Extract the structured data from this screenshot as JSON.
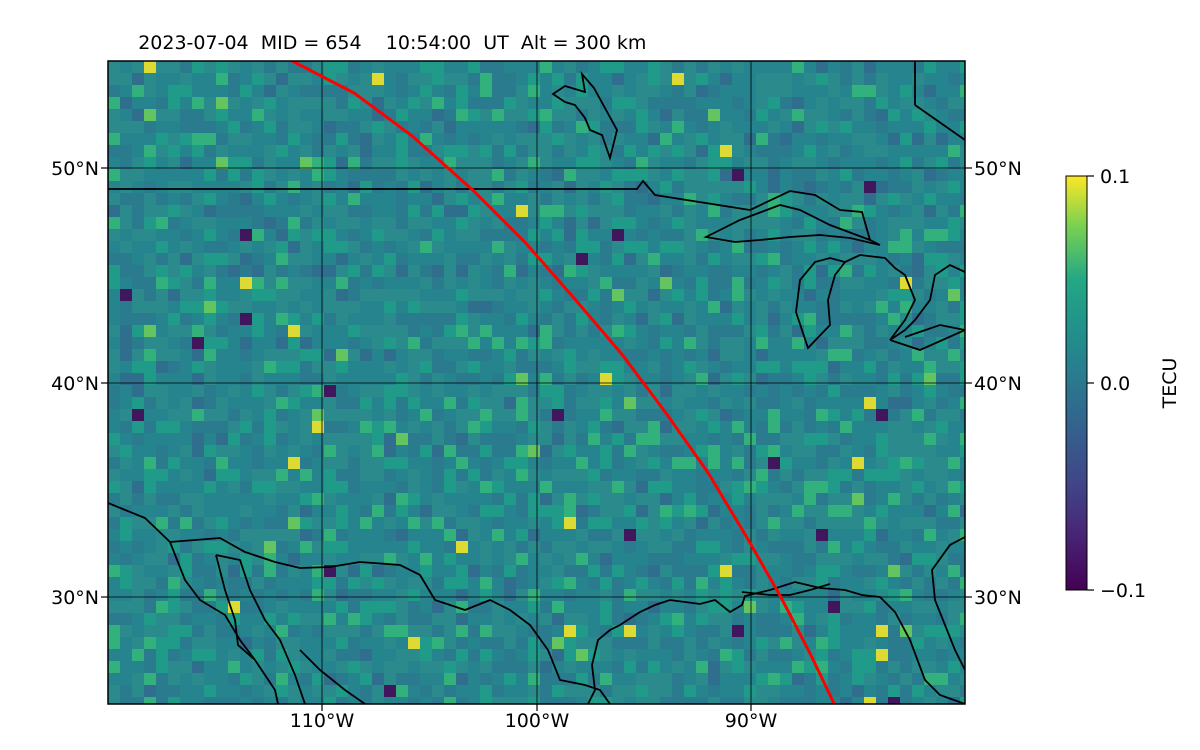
{
  "title": {
    "date": "2023-07-04",
    "mid": "MID = 654",
    "time": "10:54:00  UT",
    "alt": "Alt = 300 km"
  },
  "map": {
    "lon_range": [
      -120,
      -80
    ],
    "lat_range": [
      25,
      55
    ],
    "grid": true,
    "lat_ticks": [
      {
        "value": 50,
        "label": "50°N"
      },
      {
        "value": 40,
        "label": "40°N"
      },
      {
        "value": 30,
        "label": "30°N"
      }
    ],
    "lon_ticks": [
      {
        "value": -110,
        "label": "110°W"
      },
      {
        "value": -100,
        "label": "100°W"
      },
      {
        "value": -90,
        "label": "90°W"
      }
    ],
    "track_color": "#ff0000",
    "track_points": [
      [
        -111.4,
        55.0
      ],
      [
        -108.5,
        53.5
      ],
      [
        -105.8,
        51.5
      ],
      [
        -103.0,
        49.0
      ],
      [
        -100.5,
        46.5
      ],
      [
        -98.3,
        44.0
      ],
      [
        -96.0,
        41.3
      ],
      [
        -93.9,
        38.5
      ],
      [
        -92.0,
        35.8
      ],
      [
        -90.2,
        32.8
      ],
      [
        -88.6,
        30.0
      ],
      [
        -87.2,
        27.3
      ],
      [
        -86.1,
        25.0
      ]
    ]
  },
  "colorbar": {
    "label": "TECU",
    "ticks": [
      {
        "value": 0.1,
        "label": "0.1"
      },
      {
        "value": 0.0,
        "label": "0.0"
      },
      {
        "value": -0.1,
        "label": "−0.1"
      }
    ],
    "range": [
      -0.1,
      0.1
    ],
    "colormap": "viridis"
  }
}
